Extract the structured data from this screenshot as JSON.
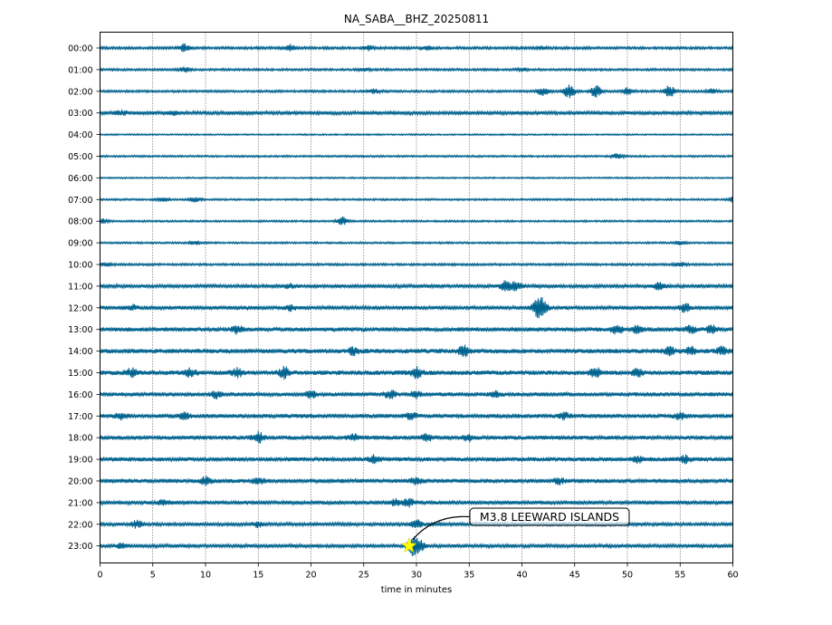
{
  "chart_data": {
    "type": "line",
    "title": "NA_SABA__BHZ_20250811",
    "xlabel": "time in minutes",
    "ylabel": "",
    "xlim": [
      0,
      60
    ],
    "x_ticks": [
      "0",
      "5",
      "10",
      "15",
      "20",
      "25",
      "30",
      "35",
      "40",
      "45",
      "50",
      "55",
      "60"
    ],
    "grid": {
      "x": "dotted",
      "y": false
    },
    "trace_color": "#00638f",
    "rows": [
      {
        "label": "00:00",
        "amplitude": 0.35,
        "bursts": [
          [
            8,
            0.9
          ],
          [
            18,
            0.8
          ],
          [
            25.5,
            0.6
          ],
          [
            31,
            0.4
          ],
          [
            42,
            0.3
          ]
        ]
      },
      {
        "label": "01:00",
        "amplitude": 0.3,
        "bursts": [
          [
            8,
            0.6
          ],
          [
            25,
            0.4
          ],
          [
            40,
            0.3
          ]
        ]
      },
      {
        "label": "02:00",
        "amplitude": 0.3,
        "bursts": [
          [
            26,
            0.5
          ],
          [
            42,
            1.0
          ],
          [
            44.5,
            1.8
          ],
          [
            47,
            1.5
          ],
          [
            50,
            0.8
          ],
          [
            54,
            1.4
          ],
          [
            58,
            0.6
          ]
        ]
      },
      {
        "label": "03:00",
        "amplitude": 0.45,
        "bursts": [
          [
            2,
            0.5
          ],
          [
            7,
            0.4
          ]
        ]
      },
      {
        "label": "04:00",
        "amplitude": 0.2,
        "bursts": []
      },
      {
        "label": "05:00",
        "amplitude": 0.25,
        "bursts": [
          [
            49,
            0.6
          ]
        ]
      },
      {
        "label": "06:00",
        "amplitude": 0.2,
        "bursts": []
      },
      {
        "label": "07:00",
        "amplitude": 0.25,
        "bursts": [
          [
            6,
            0.5
          ],
          [
            9,
            0.6
          ],
          [
            60,
            0.6
          ]
        ]
      },
      {
        "label": "08:00",
        "amplitude": 0.25,
        "bursts": [
          [
            0.3,
            0.5
          ],
          [
            23,
            1.0
          ]
        ]
      },
      {
        "label": "09:00",
        "amplitude": 0.25,
        "bursts": [
          [
            9,
            0.4
          ],
          [
            55,
            0.4
          ]
        ]
      },
      {
        "label": "10:00",
        "amplitude": 0.3,
        "bursts": [
          [
            0.5,
            0.5
          ],
          [
            55,
            0.5
          ]
        ]
      },
      {
        "label": "11:00",
        "amplitude": 0.45,
        "bursts": [
          [
            38.5,
            1.4
          ],
          [
            39.5,
            1.0
          ],
          [
            53,
            0.8
          ],
          [
            18,
            0.5
          ]
        ]
      },
      {
        "label": "12:00",
        "amplitude": 0.5,
        "bursts": [
          [
            41.5,
            2.0
          ],
          [
            42,
            1.6
          ],
          [
            3,
            0.6
          ],
          [
            18,
            0.6
          ],
          [
            55.5,
            1.0
          ]
        ]
      },
      {
        "label": "13:00",
        "amplitude": 0.55,
        "bursts": [
          [
            13,
            0.9
          ],
          [
            49,
            1.1
          ],
          [
            51,
            1.0
          ],
          [
            56,
            0.8
          ],
          [
            58,
            0.8
          ]
        ]
      },
      {
        "label": "14:00",
        "amplitude": 0.6,
        "bursts": [
          [
            24,
            0.8
          ],
          [
            34.5,
            1.2
          ],
          [
            54,
            0.9
          ],
          [
            56,
            0.9
          ],
          [
            59,
            0.9
          ]
        ]
      },
      {
        "label": "15:00",
        "amplitude": 0.6,
        "bursts": [
          [
            3,
            0.9
          ],
          [
            8.5,
            1.0
          ],
          [
            13,
            0.9
          ],
          [
            17.5,
            1.3
          ],
          [
            30,
            1.2
          ],
          [
            47,
            1.2
          ],
          [
            51,
            0.8
          ]
        ]
      },
      {
        "label": "16:00",
        "amplitude": 0.55,
        "bursts": [
          [
            11,
            0.8
          ],
          [
            20,
            0.7
          ],
          [
            27.5,
            0.9
          ],
          [
            30,
            0.7
          ],
          [
            37.5,
            0.6
          ]
        ]
      },
      {
        "label": "17:00",
        "amplitude": 0.55,
        "bursts": [
          [
            2,
            0.7
          ],
          [
            8,
            0.7
          ],
          [
            29.5,
            0.8
          ],
          [
            44,
            0.7
          ],
          [
            55,
            0.7
          ]
        ]
      },
      {
        "label": "18:00",
        "amplitude": 0.55,
        "bursts": [
          [
            15,
            1.3
          ],
          [
            24,
            0.7
          ],
          [
            31,
            0.7
          ],
          [
            35,
            0.7
          ]
        ]
      },
      {
        "label": "19:00",
        "amplitude": 0.55,
        "bursts": [
          [
            26,
            0.9
          ],
          [
            51,
            0.7
          ],
          [
            55.5,
            0.8
          ]
        ]
      },
      {
        "label": "20:00",
        "amplitude": 0.55,
        "bursts": [
          [
            10,
            0.8
          ],
          [
            15,
            0.7
          ],
          [
            30,
            0.7
          ],
          [
            43.5,
            0.7
          ]
        ]
      },
      {
        "label": "21:00",
        "amplitude": 0.5,
        "bursts": [
          [
            6,
            0.7
          ],
          [
            28,
            0.8
          ],
          [
            29.3,
            0.9
          ]
        ]
      },
      {
        "label": "22:00",
        "amplitude": 0.45,
        "bursts": [
          [
            3.5,
            0.8
          ],
          [
            15,
            0.6
          ],
          [
            30,
            1.0
          ]
        ]
      },
      {
        "label": "23:00",
        "amplitude": 0.45,
        "bursts": [
          [
            2,
            0.5
          ],
          [
            29.6,
            2.2
          ],
          [
            30.3,
            1.2
          ]
        ]
      }
    ],
    "event": {
      "label": "M3.8 LEEWARD ISLANDS",
      "time_minutes": 29.3,
      "row": "23:00",
      "marker": "star",
      "marker_color": "#ffff00"
    }
  }
}
